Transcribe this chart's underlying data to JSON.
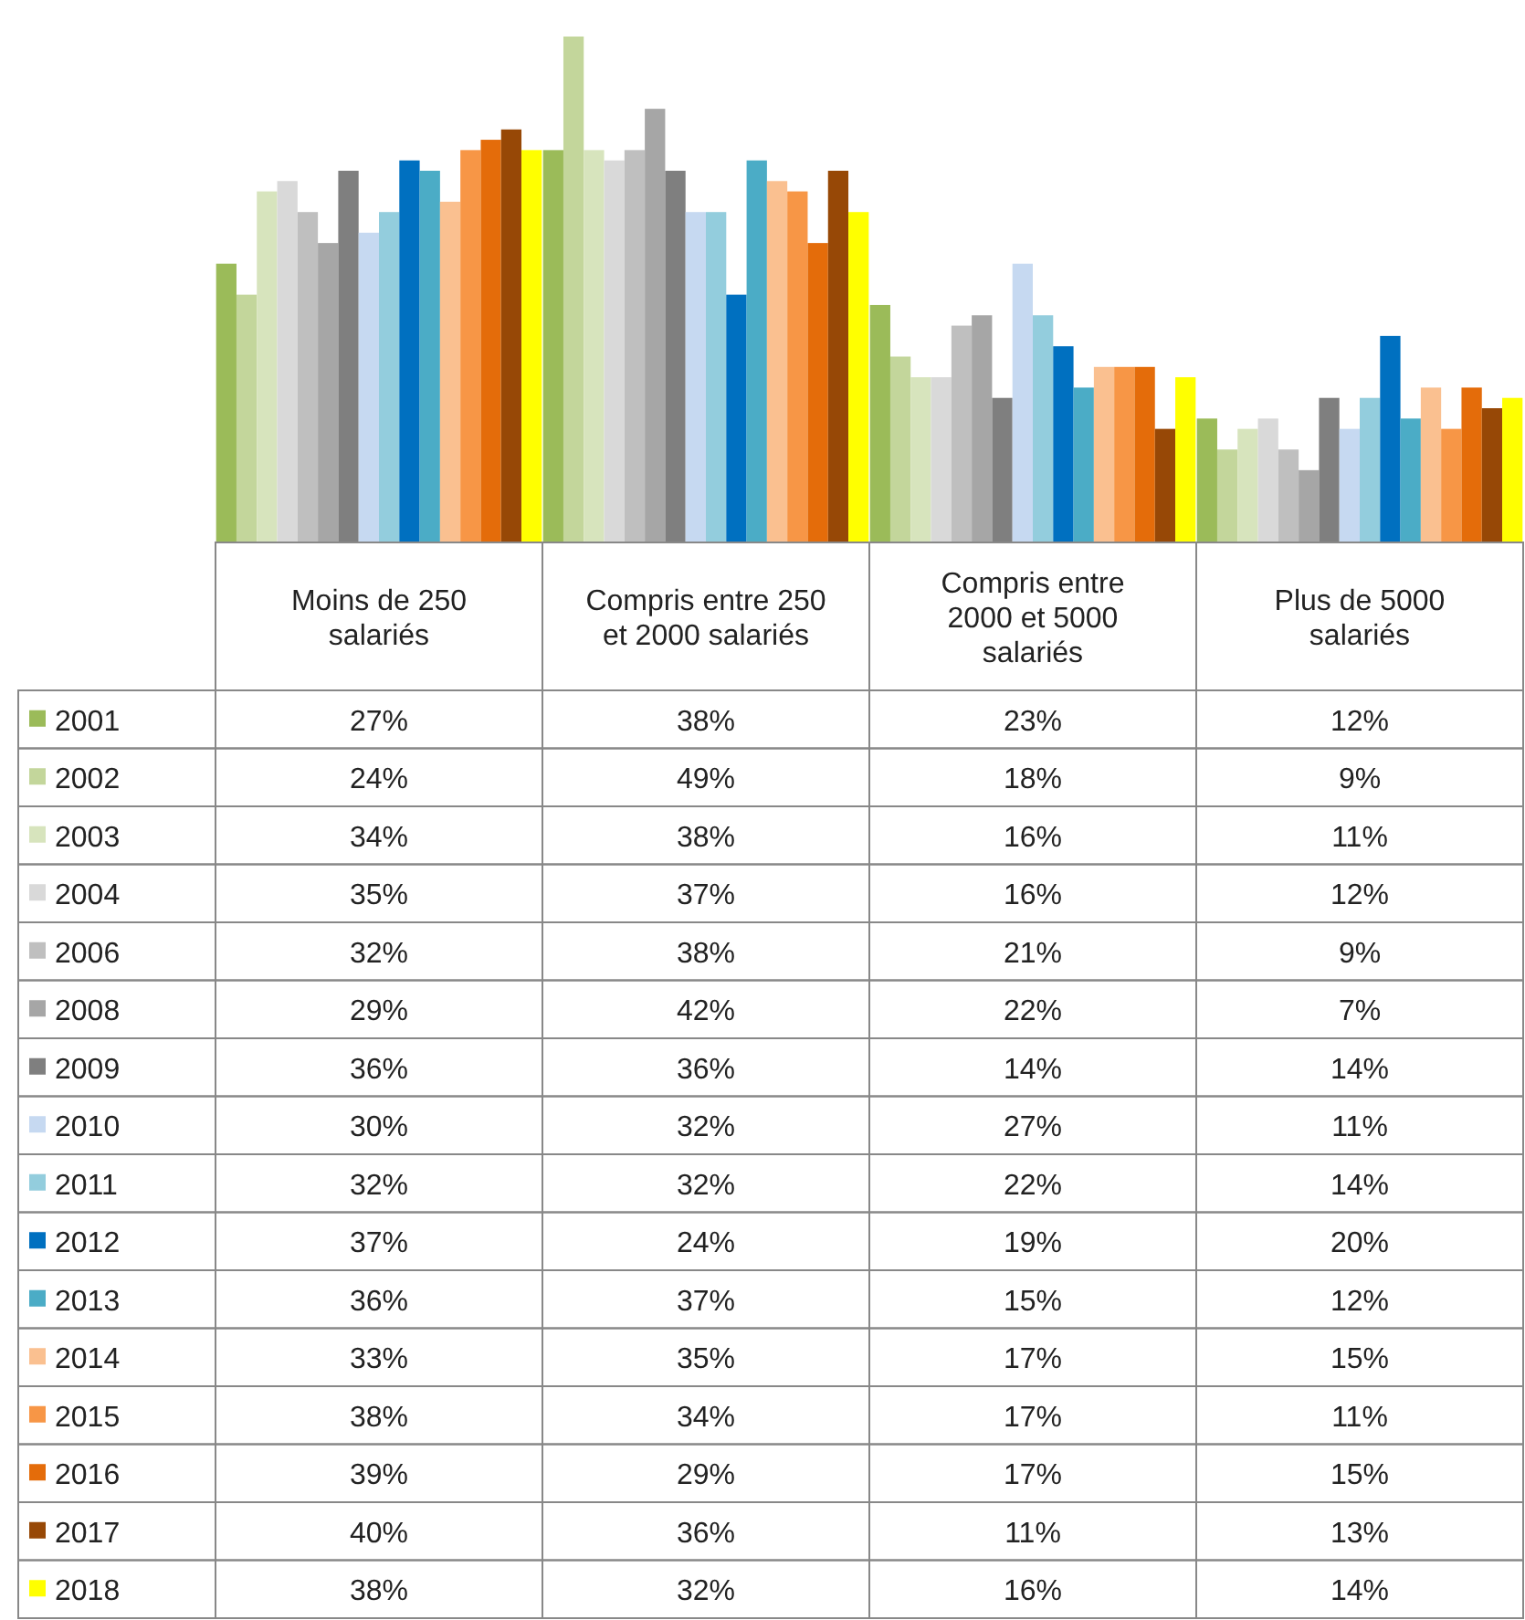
{
  "chart_data": {
    "type": "bar",
    "categories": [
      "Moins de 250 salariés",
      "Compris entre 250 et 2000 salariés",
      "Compris entre 2000 et 5000 salariés",
      "Plus de 5000 salariés"
    ],
    "data_labels": false,
    "legend": "bottom",
    "series": [
      {
        "name": "2001",
        "color": "#9bbb59",
        "values": [
          27,
          38,
          23,
          12
        ],
        "value_labels": [
          "27%",
          "38%",
          "23%",
          "12%"
        ]
      },
      {
        "name": "2002",
        "color": "#c3d69b",
        "values": [
          24,
          49,
          18,
          9
        ],
        "value_labels": [
          "24%",
          "49%",
          "18%",
          "9%"
        ]
      },
      {
        "name": "2003",
        "color": "#d7e4bd",
        "values": [
          34,
          38,
          16,
          11
        ],
        "value_labels": [
          "34%",
          "38%",
          "16%",
          "11%"
        ]
      },
      {
        "name": "2004",
        "color": "#d9d9d9",
        "values": [
          35,
          37,
          16,
          12
        ],
        "value_labels": [
          "35%",
          "37%",
          "16%",
          "12%"
        ]
      },
      {
        "name": "2006",
        "color": "#bfbfbf",
        "values": [
          32,
          38,
          21,
          9
        ],
        "value_labels": [
          "32%",
          "38%",
          "21%",
          "9%"
        ]
      },
      {
        "name": "2008",
        "color": "#a6a6a6",
        "values": [
          29,
          42,
          22,
          7
        ],
        "value_labels": [
          "29%",
          "42%",
          "22%",
          "7%"
        ]
      },
      {
        "name": "2009",
        "color": "#7f7f7f",
        "values": [
          36,
          36,
          14,
          14
        ],
        "value_labels": [
          "36%",
          "36%",
          "14%",
          "14%"
        ]
      },
      {
        "name": "2010",
        "color": "#c6d9f1",
        "values": [
          30,
          32,
          27,
          11
        ],
        "value_labels": [
          "30%",
          "32%",
          "27%",
          "11%"
        ]
      },
      {
        "name": "2011",
        "color": "#93cddd",
        "values": [
          32,
          32,
          22,
          14
        ],
        "value_labels": [
          "32%",
          "32%",
          "22%",
          "14%"
        ]
      },
      {
        "name": "2012",
        "color": "#0070c0",
        "values": [
          37,
          24,
          19,
          20
        ],
        "value_labels": [
          "37%",
          "24%",
          "19%",
          "20%"
        ]
      },
      {
        "name": "2013",
        "color": "#4bacc6",
        "values": [
          36,
          37,
          15,
          12
        ],
        "value_labels": [
          "36%",
          "37%",
          "15%",
          "12%"
        ]
      },
      {
        "name": "2014",
        "color": "#fac090",
        "values": [
          33,
          35,
          17,
          15
        ],
        "value_labels": [
          "33%",
          "35%",
          "17%",
          "15%"
        ]
      },
      {
        "name": "2015",
        "color": "#f79646",
        "values": [
          38,
          34,
          17,
          11
        ],
        "value_labels": [
          "38%",
          "34%",
          "17%",
          "11%"
        ]
      },
      {
        "name": "2016",
        "color": "#e46c0a",
        "values": [
          39,
          29,
          17,
          15
        ],
        "value_labels": [
          "39%",
          "29%",
          "17%",
          "15%"
        ]
      },
      {
        "name": "2017",
        "color": "#974806",
        "values": [
          40,
          36,
          11,
          13
        ],
        "value_labels": [
          "40%",
          "36%",
          "11%",
          "13%"
        ]
      },
      {
        "name": "2018",
        "color": "#ffff00",
        "values": [
          38,
          32,
          16,
          14
        ],
        "value_labels": [
          "38%",
          "32%",
          "16%",
          "14%"
        ]
      }
    ]
  }
}
